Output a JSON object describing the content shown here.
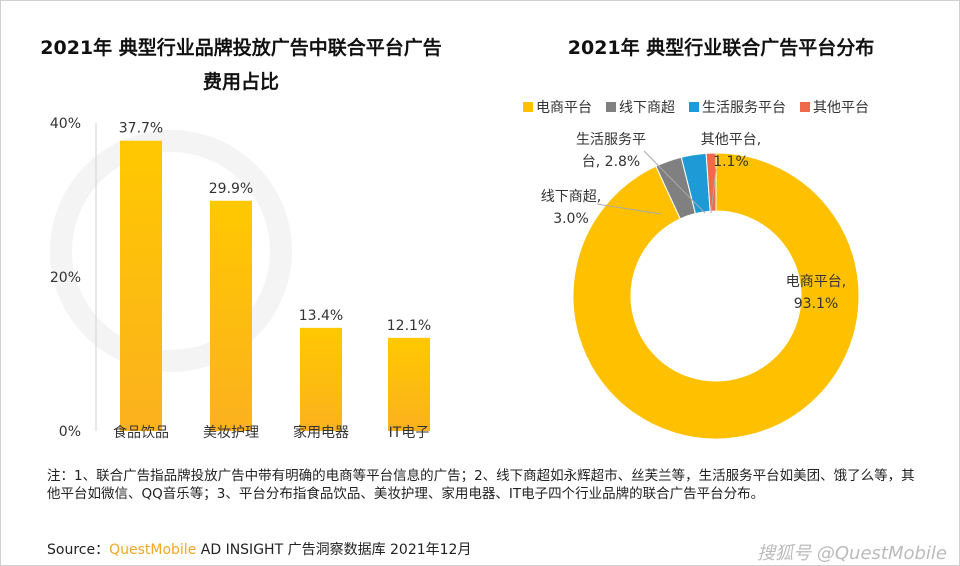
{
  "watermark_bg": "QUESTMOBILE",
  "chart_data": [
    {
      "type": "bar",
      "title": "2021年 典型行业品牌投放广告中联合平台广告费用占比",
      "categories": [
        "食品饮品",
        "美妆护理",
        "家用电器",
        "IT电子"
      ],
      "values": [
        37.7,
        29.9,
        13.4,
        12.1
      ],
      "data_labels": [
        "37.7%",
        "29.9%",
        "13.4%",
        "12.1%"
      ],
      "yticks": [
        "0%",
        "20%",
        "40%"
      ],
      "ylim": [
        0,
        40
      ],
      "color": "#FFC000"
    },
    {
      "type": "pie",
      "title": "2021年 典型行业联合广告平台分布",
      "donut": true,
      "legend_position": "top",
      "slices": [
        {
          "name": "电商平台",
          "value": 93.1,
          "label": "电商平台,",
          "value_label": "93.1%",
          "color": "#FFC000"
        },
        {
          "name": "线下商超",
          "value": 3.0,
          "label": "线下商超,",
          "value_label": "3.0%",
          "color": "#808080"
        },
        {
          "name": "生活服务平台",
          "value": 2.8,
          "label": "生活服务平",
          "value_label": "台, 2.8%",
          "color": "#1E9BD7"
        },
        {
          "name": "其他平台",
          "value": 1.1,
          "label": "其他平台,",
          "value_label": "1.1%",
          "color": "#EE6A4A"
        }
      ]
    }
  ],
  "footer": {
    "note": "注：1、联合广告指品牌投放广告中带有明确的电商等平台信息的广告；2、线下商超如永辉超市、丝芙兰等，生活服务平台如美团、饿了么等，其他平台如微信、QQ音乐等；3、平台分布指食品饮品、美妆护理、家用电器、IT电子四个行业品牌的联合广告平台分布。",
    "source_prefix": "Source：",
    "source_brand": "QuestMobile",
    "source_rest": " AD INSIGHT 广告洞察数据库 2021年12月",
    "watermark": "搜狐号 @QuestMobile"
  }
}
